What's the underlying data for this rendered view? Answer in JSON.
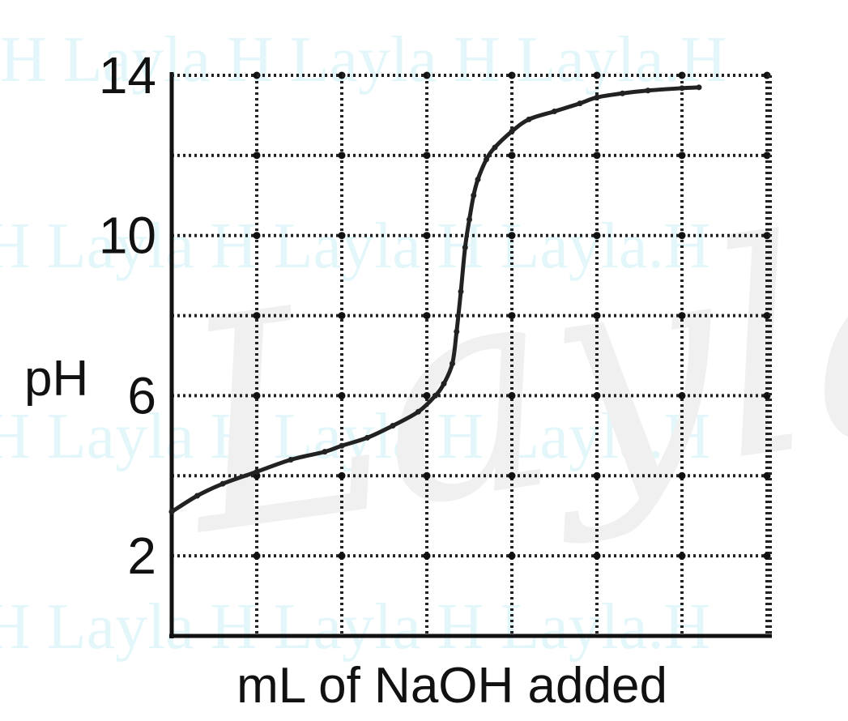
{
  "watermark": {
    "text": "H Layla H Layla H Layla.H",
    "signature": "Layla",
    "color": "#e3f7fb"
  },
  "chart_data": {
    "type": "line",
    "title": "",
    "xlabel": "mL of NaOH added",
    "ylabel": "pH",
    "xlim": [
      0,
      7
    ],
    "ylim": [
      0,
      14
    ],
    "x_gridlines": [
      1,
      2,
      3,
      4,
      5,
      6,
      7
    ],
    "y_gridlines": [
      2,
      4,
      6,
      8,
      10,
      12,
      14
    ],
    "y_tick_labels": [
      {
        "value": 14,
        "label": "14"
      },
      {
        "value": 10,
        "label": "10"
      },
      {
        "value": 6,
        "label": "6"
      },
      {
        "value": 2,
        "label": "2"
      }
    ],
    "grid": true,
    "line_color": "#222222",
    "series": [
      {
        "name": "",
        "x": [
          0,
          0.3,
          0.6,
          1.0,
          1.4,
          1.8,
          2.0,
          2.3,
          2.6,
          2.9,
          3.1,
          3.2,
          3.3,
          3.35,
          3.4,
          3.45,
          3.5,
          3.55,
          3.6,
          3.7,
          3.8,
          4.0,
          4.2,
          4.5,
          4.8,
          5.0,
          5.3,
          5.6,
          6.0,
          6.2
        ],
        "y": [
          3.1,
          3.5,
          3.8,
          4.1,
          4.4,
          4.6,
          4.75,
          4.95,
          5.25,
          5.6,
          6.0,
          6.3,
          6.8,
          7.6,
          8.6,
          9.7,
          10.4,
          11.0,
          11.4,
          11.9,
          12.2,
          12.6,
          12.9,
          13.1,
          13.3,
          13.45,
          13.55,
          13.62,
          13.68,
          13.7
        ]
      }
    ]
  }
}
